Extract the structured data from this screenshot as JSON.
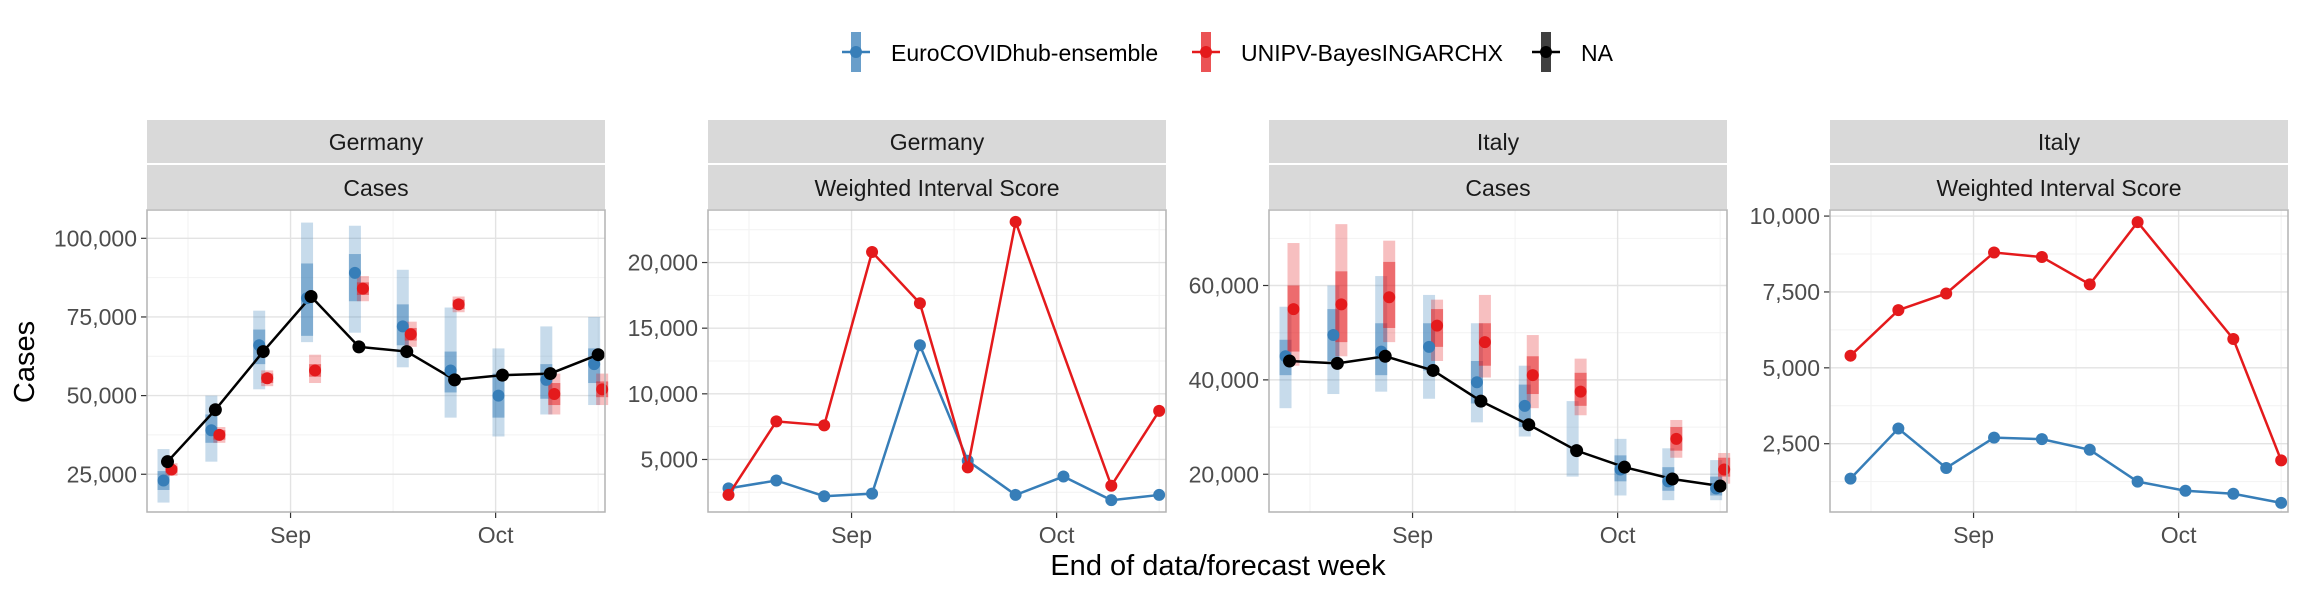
{
  "chart_data": {
    "type": "line",
    "legend": {
      "position": "top",
      "items": [
        {
          "name": "EuroCOVIDhub-ensemble",
          "color": "#377EB8"
        },
        {
          "name": "UNIPV-BayesINGARCHX",
          "color": "#E41A1C"
        },
        {
          "name": "NA",
          "color": "#000000"
        }
      ]
    },
    "ylabel": "Cases",
    "xlabel": "End of data/forecast week",
    "x_ticks": [
      "Sep",
      "Oct"
    ],
    "x_dates": [
      "08-14",
      "08-21",
      "08-28",
      "09-04",
      "09-11",
      "09-18",
      "09-25",
      "10-02",
      "10-09",
      "10-16"
    ],
    "grid": true,
    "panels": [
      {
        "strip": [
          "Germany",
          "Cases"
        ],
        "ylim": [
          13000,
          109000
        ],
        "yticks": [
          "25,000",
          "50,000",
          "75,000",
          "100,000"
        ],
        "ytick_values": [
          25000,
          50000,
          75000,
          100000
        ],
        "observed": [
          29000,
          45500,
          64000,
          81500,
          65500,
          64000,
          55000,
          56500,
          57000,
          63000
        ],
        "series": [
          {
            "name": "EuroCOVIDhub-ensemble",
            "median": [
              23000,
              39000,
              66000,
              81000,
              89000,
              72000,
              58000,
              50000,
              55000,
              60000
            ],
            "inner": [
              [
                20000,
                26000
              ],
              [
                35000,
                44000
              ],
              [
                60000,
                71000
              ],
              [
                69000,
                92000
              ],
              [
                80000,
                95000
              ],
              [
                66000,
                79000
              ],
              [
                51000,
                64000
              ],
              [
                43000,
                57000
              ],
              [
                49000,
                60000
              ],
              [
                54000,
                65000
              ]
            ],
            "outer": [
              [
                16000,
                33000
              ],
              [
                29000,
                50000
              ],
              [
                52000,
                77000
              ],
              [
                67000,
                105000
              ],
              [
                70000,
                104000
              ],
              [
                59000,
                90000
              ],
              [
                43000,
                78000
              ],
              [
                37000,
                65000
              ],
              [
                44000,
                72000
              ],
              [
                47000,
                75000
              ]
            ]
          },
          {
            "name": "UNIPV-BayesINGARCHX",
            "median": [
              26500,
              37500,
              55500,
              58000,
              84000,
              69500,
              79000,
              null,
              50500,
              52000
            ],
            "inner": [
              [
                25500,
                27500
              ],
              [
                36000,
                39000
              ],
              [
                54000,
                57000
              ],
              [
                56000,
                60000
              ],
              [
                82000,
                86000
              ],
              [
                67500,
                71500
              ],
              [
                77500,
                80500
              ],
              null,
              [
                47000,
                54000
              ],
              [
                49500,
                54500
              ]
            ],
            "outer": [
              [
                24500,
                28500
              ],
              [
                35000,
                40000
              ],
              [
                53000,
                58000
              ],
              [
                54000,
                63000
              ],
              [
                80000,
                88000
              ],
              [
                65500,
                73500
              ],
              [
                76500,
                81500
              ],
              null,
              [
                44000,
                57000
              ],
              [
                47000,
                57000
              ]
            ]
          }
        ]
      },
      {
        "strip": [
          "Germany",
          "Weighted Interval Score"
        ],
        "ylim": [
          1000,
          24000
        ],
        "yticks": [
          "5,000",
          "10,000",
          "15,000",
          "20,000"
        ],
        "ytick_values": [
          5000,
          10000,
          15000,
          20000
        ],
        "series": [
          {
            "name": "EuroCOVIDhub-ensemble",
            "values": [
              2800,
              3400,
              2200,
              2400,
              13700,
              4900,
              2300,
              3700,
              1900,
              2300
            ]
          },
          {
            "name": "UNIPV-BayesINGARCHX",
            "values": [
              2300,
              7900,
              7600,
              20800,
              16900,
              4400,
              23100,
              null,
              3000,
              8700
            ]
          }
        ]
      },
      {
        "strip": [
          "Italy",
          "Cases"
        ],
        "ylim": [
          12000,
          76000
        ],
        "yticks": [
          "20,000",
          "40,000",
          "60,000"
        ],
        "ytick_values": [
          20000,
          40000,
          60000
        ],
        "observed": [
          44000,
          43500,
          45000,
          42000,
          35500,
          30500,
          25000,
          21500,
          19000,
          17500
        ],
        "series": [
          {
            "name": "EuroCOVIDhub-ensemble",
            "median": [
              45000,
              49500,
              46000,
              47000,
              39500,
              34500,
              null,
              21000,
              18500,
              17000
            ],
            "inner": [
              [
                41000,
                48500
              ],
              [
                44000,
                55000
              ],
              [
                41000,
                52000
              ],
              [
                42000,
                52000
              ],
              [
                35000,
                44000
              ],
              [
                30000,
                39000
              ],
              null,
              [
                18500,
                24000
              ],
              [
                16500,
                21500
              ],
              [
                15500,
                19500
              ]
            ],
            "outer": [
              [
                34000,
                55500
              ],
              [
                37000,
                60000
              ],
              [
                37500,
                62000
              ],
              [
                36000,
                58000
              ],
              [
                31000,
                52000
              ],
              [
                28000,
                43000
              ],
              [
                19500,
                35500
              ],
              [
                15500,
                27500
              ],
              [
                14500,
                25500
              ],
              [
                14500,
                23000
              ]
            ]
          },
          {
            "name": "UNIPV-BayesINGARCHX",
            "median": [
              55000,
              56000,
              57500,
              51500,
              48000,
              41000,
              37500,
              null,
              27500,
              21000
            ],
            "inner": [
              [
                46000,
                60000
              ],
              [
                48000,
                63000
              ],
              [
                51000,
                65000
              ],
              [
                47000,
                55000
              ],
              [
                43000,
                52000
              ],
              [
                37000,
                45000
              ],
              [
                34500,
                41500
              ],
              null,
              [
                25000,
                30000
              ],
              [
                19500,
                23500
              ]
            ],
            "outer": [
              [
                43000,
                69000
              ],
              [
                45000,
                73000
              ],
              [
                48000,
                69500
              ],
              [
                44000,
                57000
              ],
              [
                40500,
                58000
              ],
              [
                34000,
                49500
              ],
              [
                32500,
                44500
              ],
              null,
              [
                23500,
                31500
              ],
              [
                18000,
                24500
              ]
            ]
          }
        ]
      },
      {
        "strip": [
          "Italy",
          "Weighted Interval Score"
        ],
        "ylim": [
          250,
          10200
        ],
        "yticks": [
          "2,500",
          "5,000",
          "7,500",
          "10,000"
        ],
        "ytick_values": [
          2500,
          5000,
          7500,
          10000
        ],
        "series": [
          {
            "name": "EuroCOVIDhub-ensemble",
            "values": [
              1350,
              3000,
              1700,
              2700,
              2650,
              2300,
              1250,
              950,
              850,
              550
            ]
          },
          {
            "name": "UNIPV-BayesINGARCHX",
            "values": [
              5400,
              6900,
              7450,
              8800,
              8650,
              7750,
              9800,
              null,
              5950,
              1950
            ]
          }
        ]
      }
    ]
  }
}
